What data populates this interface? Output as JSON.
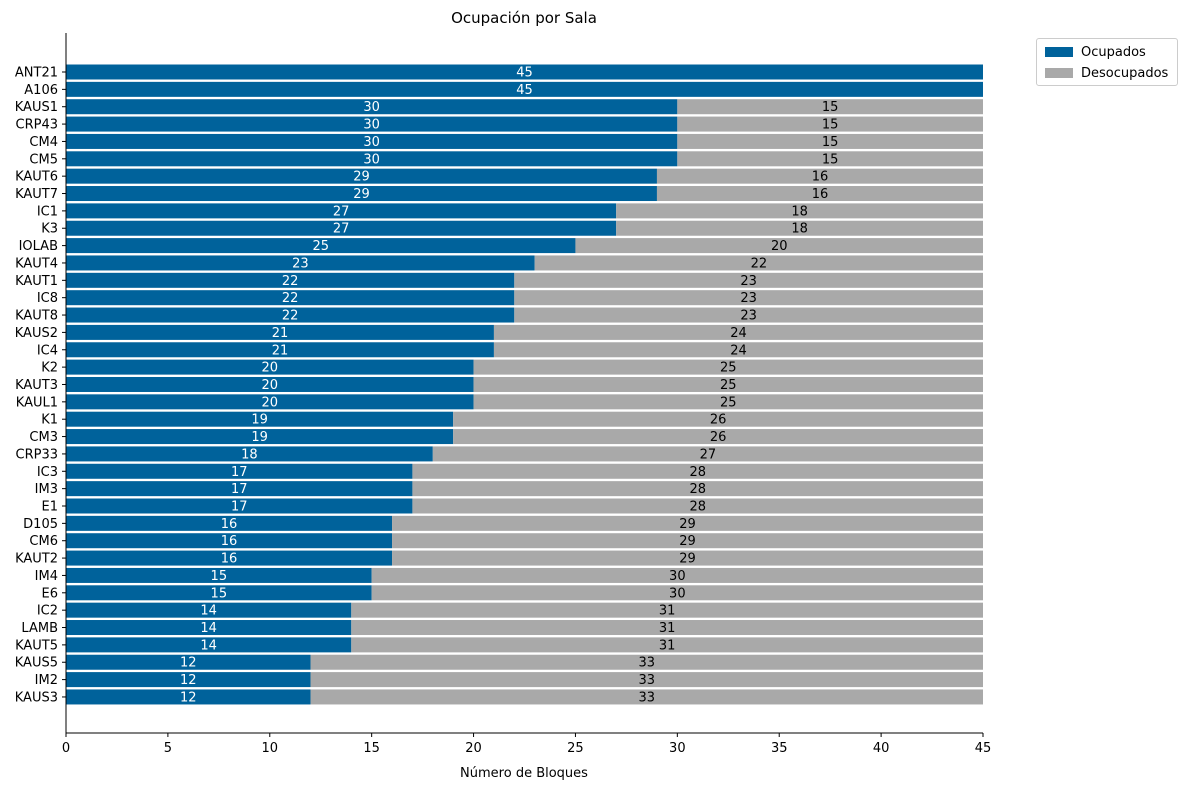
{
  "colors": {
    "occupied": "#00629b",
    "free": "#a9a9a9",
    "occupied_label": "#ffffff",
    "free_label": "#000000"
  },
  "chart_data": {
    "type": "bar",
    "orientation": "horizontal",
    "stacked": true,
    "title": "Ocupación por Sala",
    "xlabel": "Número de Bloques",
    "ylabel": "",
    "xlim": [
      0,
      45
    ],
    "xticks": [
      0,
      5,
      10,
      15,
      20,
      25,
      30,
      35,
      40,
      45
    ],
    "grid": false,
    "legend_position": "outside top-right",
    "categories": [
      "ANT21",
      "A106",
      "KAUS1",
      "CRP43",
      "CM4",
      "CM5",
      "KAUT6",
      "KAUT7",
      "IC1",
      "K3",
      "IOLAB",
      "KAUT4",
      "KAUT1",
      "IC8",
      "KAUT8",
      "KAUS2",
      "IC4",
      "K2",
      "KAUT3",
      "KAUL1",
      "K1",
      "CM3",
      "CRP33",
      "IC3",
      "IM3",
      "E1",
      "D105",
      "CM6",
      "KAUT2",
      "IM4",
      "E6",
      "IC2",
      "LAMB",
      "KAUT5",
      "KAUS5",
      "IM2",
      "KAUS3"
    ],
    "series": [
      {
        "name": "Ocupados",
        "color": "#00629b",
        "values": [
          45,
          45,
          30,
          30,
          30,
          30,
          29,
          29,
          27,
          27,
          25,
          23,
          22,
          22,
          22,
          21,
          21,
          20,
          20,
          20,
          19,
          19,
          18,
          17,
          17,
          17,
          16,
          16,
          16,
          15,
          15,
          14,
          14,
          14,
          12,
          12,
          12
        ]
      },
      {
        "name": "Desocupados",
        "color": "#a9a9a9",
        "values": [
          0,
          0,
          15,
          15,
          15,
          15,
          16,
          16,
          18,
          18,
          20,
          22,
          23,
          23,
          23,
          24,
          24,
          25,
          25,
          25,
          26,
          26,
          27,
          28,
          28,
          28,
          29,
          29,
          29,
          30,
          30,
          31,
          31,
          31,
          33,
          33,
          33
        ]
      }
    ]
  }
}
